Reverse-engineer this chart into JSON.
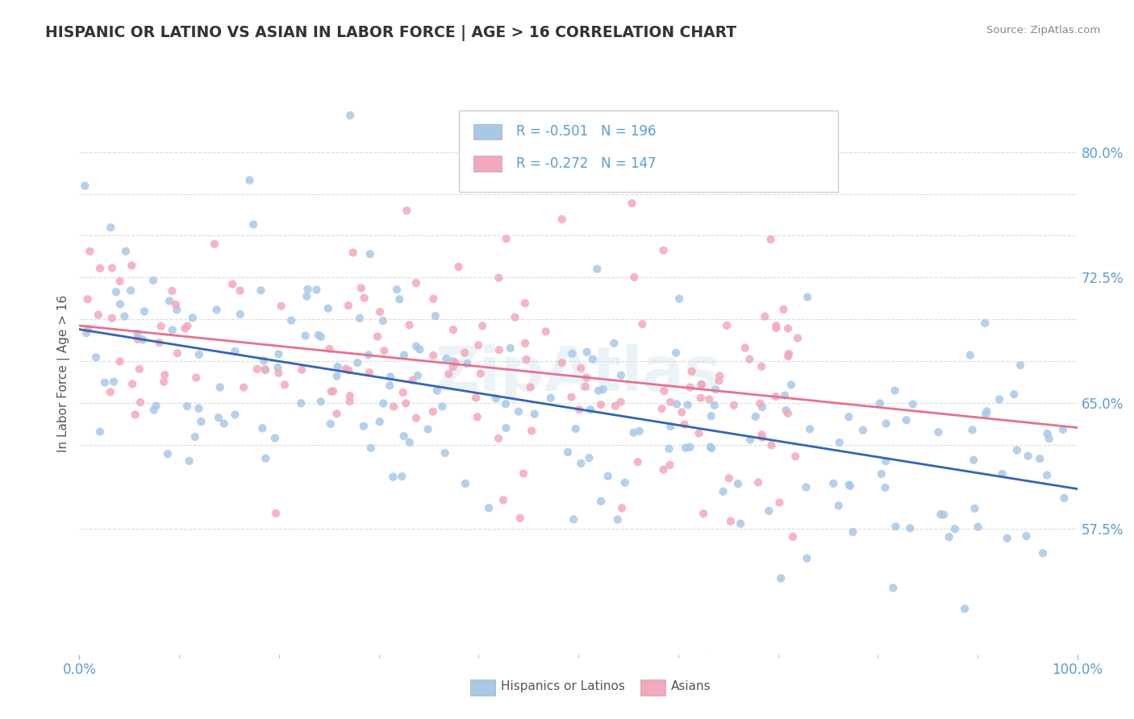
{
  "title": "HISPANIC OR LATINO VS ASIAN IN LABOR FORCE | AGE > 16 CORRELATION CHART",
  "source": "Source: ZipAtlas.com",
  "ylabel": "In Labor Force | Age > 16",
  "xlim": [
    0.0,
    1.0
  ],
  "ylim": [
    0.5,
    0.835
  ],
  "blue_R": -0.501,
  "blue_N": 196,
  "pink_R": -0.272,
  "pink_N": 147,
  "blue_color": "#a8c8e8",
  "pink_color": "#f4a8bc",
  "blue_line_color": "#3464b4",
  "pink_line_color": "#e87090",
  "legend_blue_label": "Hispanics or Latinos",
  "legend_pink_label": "Asians",
  "title_color": "#333333",
  "axis_label_color": "#555555",
  "tick_color": "#5b9bd5",
  "grid_color": "#cccccc",
  "background_color": "#ffffff",
  "watermark_text": "ZipAtlas",
  "watermark_color": "#c8ddf0",
  "ytick_positions": [
    0.575,
    0.65,
    0.725,
    0.8
  ],
  "ytick_labels": [
    "57.5%",
    "65.0%",
    "72.5%",
    "80.0%"
  ],
  "grid_positions": [
    0.575,
    0.625,
    0.65,
    0.675,
    0.7,
    0.725,
    0.75,
    0.775,
    0.8
  ]
}
